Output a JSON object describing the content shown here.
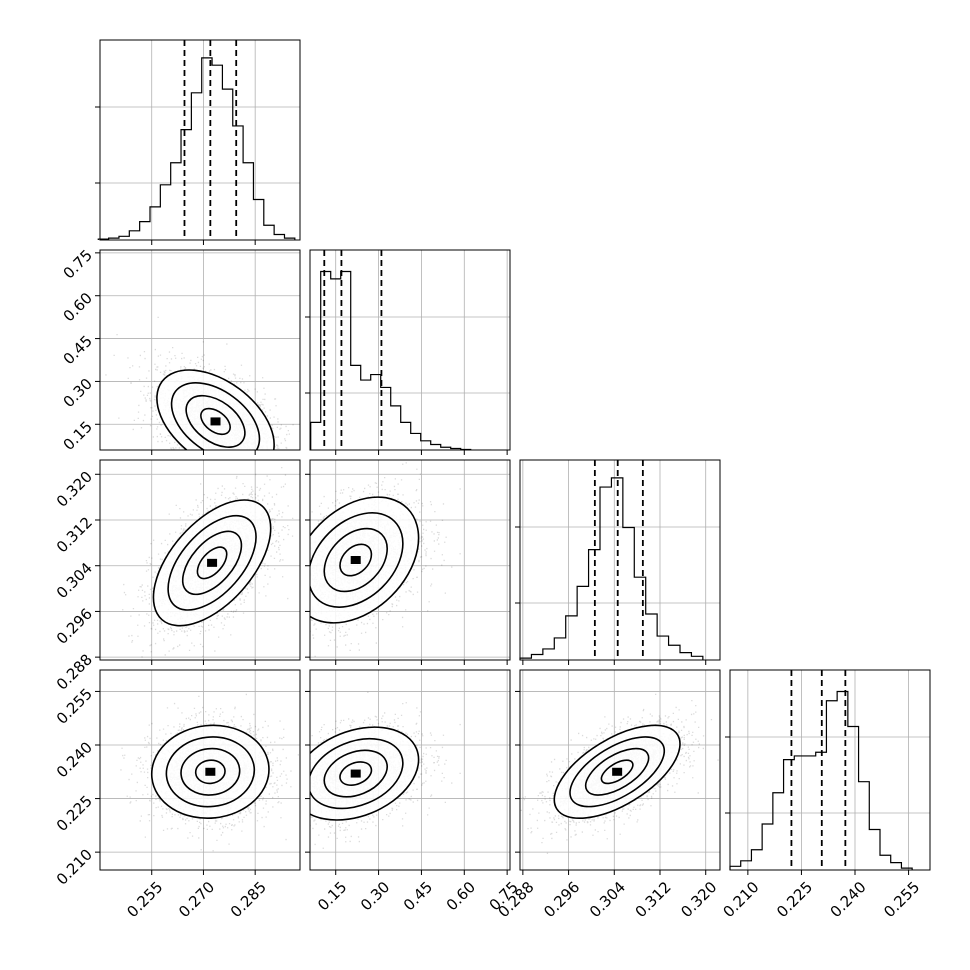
{
  "chart_data": {
    "type": "scatter",
    "title": "",
    "description_kind": "corner-plot",
    "parameters": [
      {
        "name": "",
        "range": [
          0.24,
          0.298
        ],
        "ticks": [
          "0.255",
          "0.270",
          "0.285"
        ],
        "tick_values": [
          0.255,
          0.27,
          0.285
        ],
        "quantiles": [
          0.2645,
          0.272,
          0.2795
        ],
        "hist_x": [
          0.241,
          0.244,
          0.247,
          0.25,
          0.253,
          0.256,
          0.259,
          0.262,
          0.265,
          0.268,
          0.271,
          0.274,
          0.277,
          0.28,
          0.283,
          0.286,
          0.289,
          0.292,
          0.295
        ],
        "hist_y": [
          0.005,
          0.01,
          0.02,
          0.05,
          0.1,
          0.18,
          0.3,
          0.42,
          0.6,
          0.8,
          0.99,
          0.95,
          0.82,
          0.62,
          0.42,
          0.22,
          0.08,
          0.03,
          0.01
        ]
      },
      {
        "name": "",
        "range": [
          0.06,
          0.76
        ],
        "ticks": [
          "0.15",
          "0.30",
          "0.45",
          "0.60",
          "0.75"
        ],
        "tick_values": [
          0.15,
          0.3,
          0.45,
          0.6,
          0.75
        ],
        "quantiles": [
          0.11,
          0.17,
          0.31
        ],
        "hist_x": [
          0.08,
          0.115,
          0.15,
          0.185,
          0.22,
          0.255,
          0.29,
          0.325,
          0.36,
          0.395,
          0.43,
          0.465,
          0.5,
          0.535,
          0.57,
          0.605
        ],
        "hist_y": [
          0.15,
          0.97,
          0.93,
          0.97,
          0.46,
          0.38,
          0.41,
          0.34,
          0.24,
          0.15,
          0.09,
          0.05,
          0.03,
          0.015,
          0.008,
          0.003
        ]
      },
      {
        "name": "",
        "range": [
          0.2875,
          0.3225
        ],
        "ticks": [
          "0.288",
          "0.296",
          "0.304",
          "0.312",
          "0.320"
        ],
        "tick_values": [
          0.288,
          0.296,
          0.304,
          0.312,
          0.32
        ],
        "quantiles": [
          0.3006,
          0.3046,
          0.309
        ],
        "hist_x": [
          0.2885,
          0.2905,
          0.2925,
          0.2945,
          0.2965,
          0.2985,
          0.3005,
          0.3025,
          0.3045,
          0.3065,
          0.3085,
          0.3105,
          0.3125,
          0.3145,
          0.3165,
          0.3185
        ],
        "hist_y": [
          0.01,
          0.03,
          0.06,
          0.12,
          0.24,
          0.4,
          0.6,
          0.94,
          0.99,
          0.72,
          0.45,
          0.25,
          0.13,
          0.08,
          0.04,
          0.02
        ]
      },
      {
        "name": "",
        "range": [
          0.205,
          0.261
        ],
        "ticks": [
          "0.210",
          "0.225",
          "0.240",
          "0.255"
        ],
        "tick_values": [
          0.21,
          0.225,
          0.24,
          0.255
        ],
        "quantiles": [
          0.2222,
          0.2307,
          0.2373
        ],
        "hist_x": [
          0.2065,
          0.2095,
          0.2125,
          0.2155,
          0.2185,
          0.2215,
          0.2245,
          0.2275,
          0.2305,
          0.2335,
          0.2365,
          0.2395,
          0.2425,
          0.2455,
          0.2485,
          0.2515,
          0.2545
        ],
        "hist_y": [
          0.02,
          0.05,
          0.11,
          0.25,
          0.42,
          0.6,
          0.62,
          0.62,
          0.64,
          0.92,
          0.97,
          0.78,
          0.48,
          0.22,
          0.08,
          0.04,
          0.01
        ]
      }
    ],
    "pairs": [
      {
        "x_param": 0,
        "y_param": 1,
        "center": [
          0.2735,
          0.16
        ],
        "spread": [
          0.0085,
          0.09
        ],
        "corr": -0.45
      },
      {
        "x_param": 0,
        "y_param": 2,
        "center": [
          0.2725,
          0.3045
        ],
        "spread": [
          0.0085,
          0.0055
        ],
        "corr": 0.55
      },
      {
        "x_param": 1,
        "y_param": 2,
        "center": [
          0.22,
          0.305
        ],
        "spread": [
          0.11,
          0.0055
        ],
        "corr": 0.35
      },
      {
        "x_param": 0,
        "y_param": 3,
        "center": [
          0.272,
          0.2325
        ],
        "spread": [
          0.0085,
          0.0065
        ],
        "corr": 0.05
      },
      {
        "x_param": 1,
        "y_param": 3,
        "center": [
          0.22,
          0.232
        ],
        "spread": [
          0.11,
          0.0065
        ],
        "corr": 0.3
      },
      {
        "x_param": 2,
        "y_param": 3,
        "center": [
          0.3045,
          0.2325
        ],
        "spread": [
          0.0055,
          0.0065
        ],
        "corr": 0.6
      }
    ],
    "grid": true,
    "samples_per_panel": 2600
  }
}
